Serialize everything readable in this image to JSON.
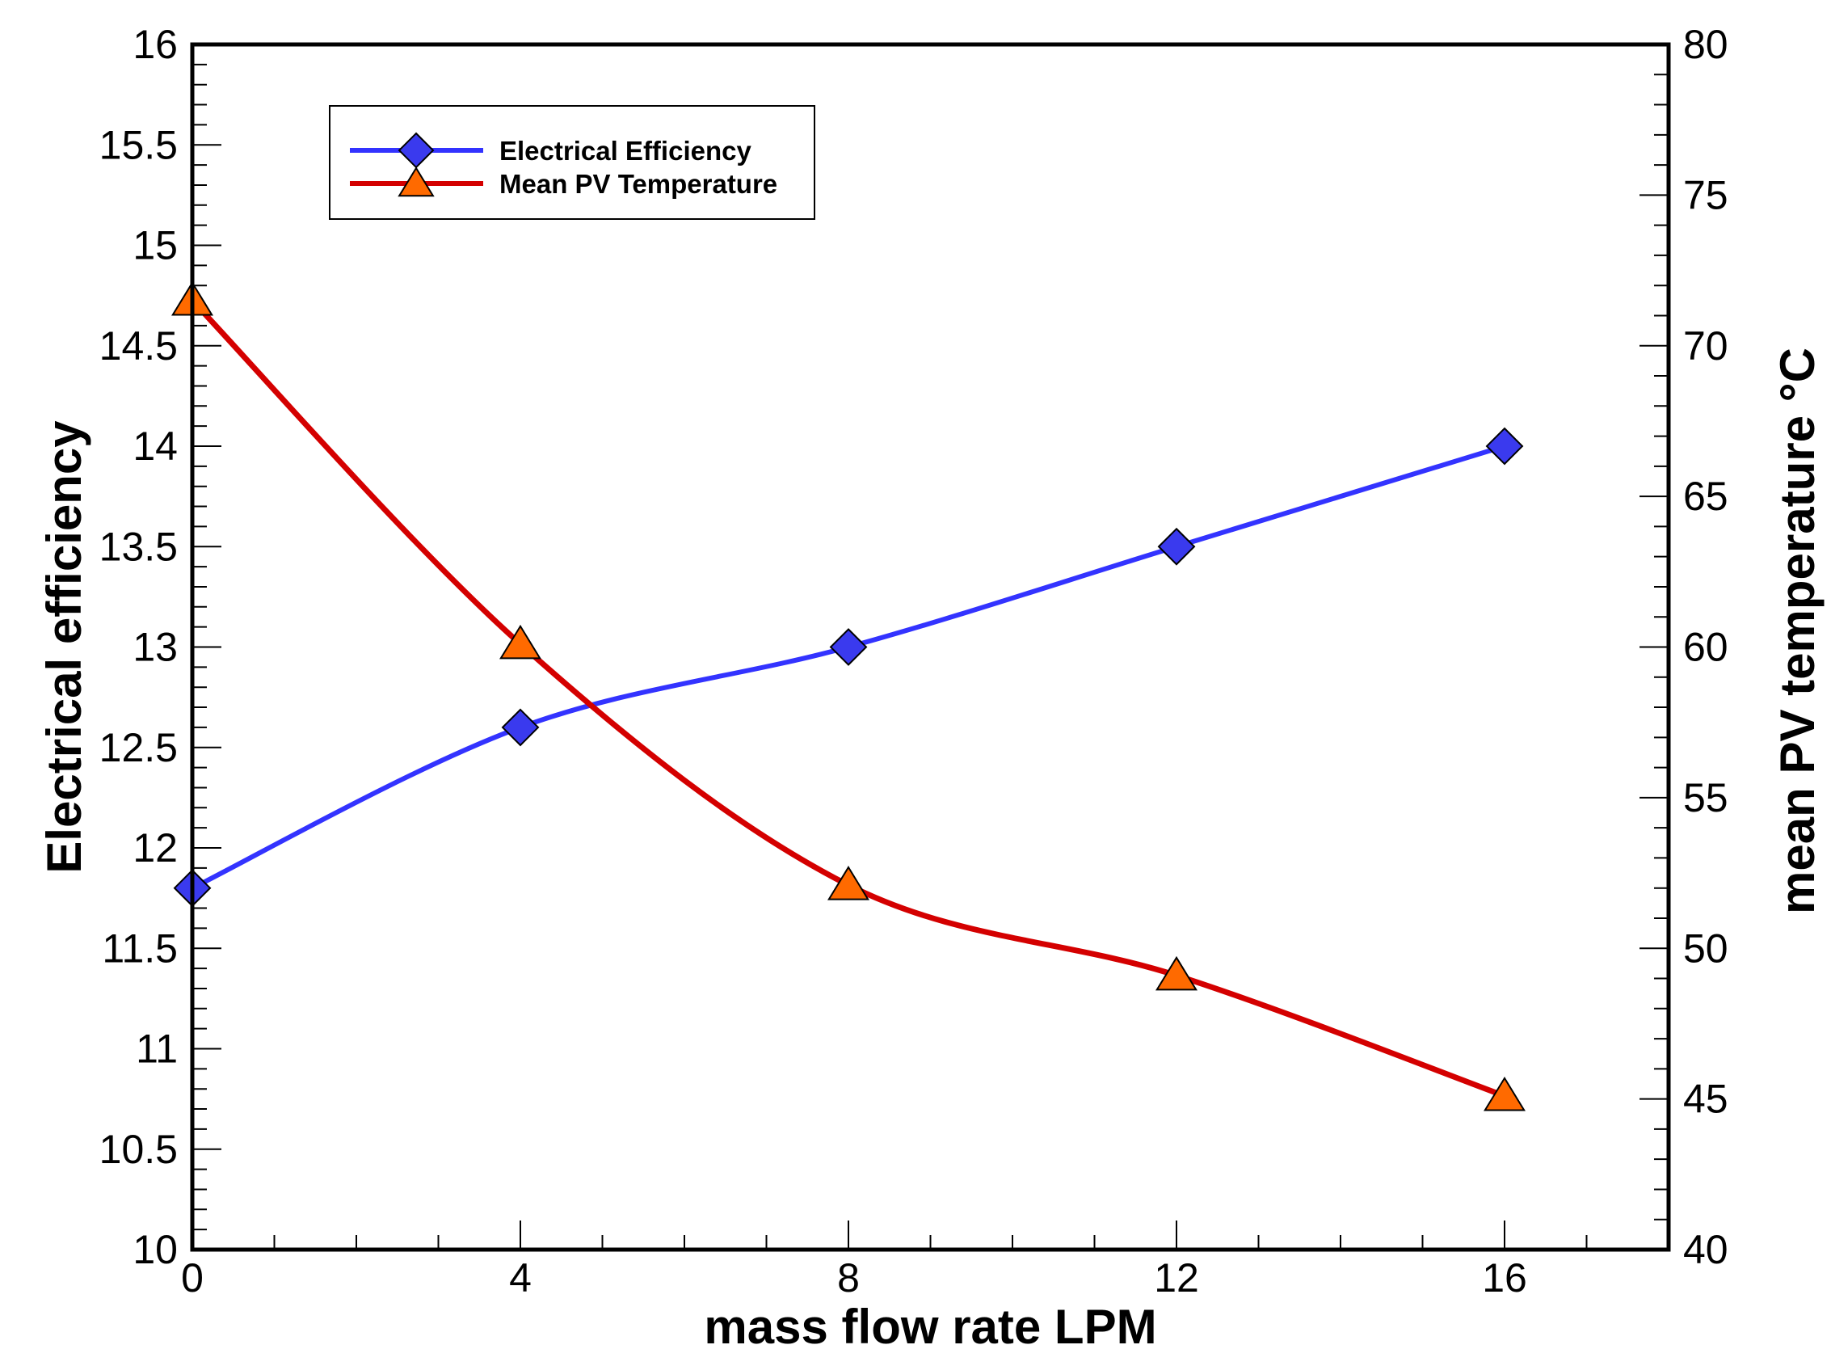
{
  "chart_data": {
    "type": "line",
    "x": [
      0,
      4,
      8,
      12,
      16
    ],
    "xlim": [
      0,
      18
    ],
    "xticks": [
      0,
      4,
      8,
      12,
      16
    ],
    "xlabel": "mass flow rate LPM",
    "ylabel_left": "Electrical efficiency",
    "ylim_left": [
      10,
      16
    ],
    "yticks_left": [
      10,
      10.5,
      11,
      11.5,
      12,
      12.5,
      13,
      13.5,
      14,
      14.5,
      15,
      15.5,
      16
    ],
    "ylabel_right": "mean PV  temperature °C",
    "ylim_right": [
      40,
      80
    ],
    "yticks_right": [
      40,
      45,
      50,
      55,
      60,
      65,
      70,
      75,
      80
    ],
    "legend_position": "top-left",
    "series": [
      {
        "name": "Electrical Efficiency",
        "axis": "left",
        "marker": "diamond",
        "color": "#3333ff",
        "marker_fill": "#3a3aee",
        "values": [
          11.8,
          12.6,
          13.0,
          13.5,
          14.0
        ]
      },
      {
        "name": "Mean PV Temperature",
        "axis": "right",
        "marker": "triangle",
        "color": "#d40000",
        "marker_fill": "#ff6a00",
        "values": [
          71.5,
          60.1,
          52.1,
          49.1,
          45.1
        ]
      }
    ]
  }
}
